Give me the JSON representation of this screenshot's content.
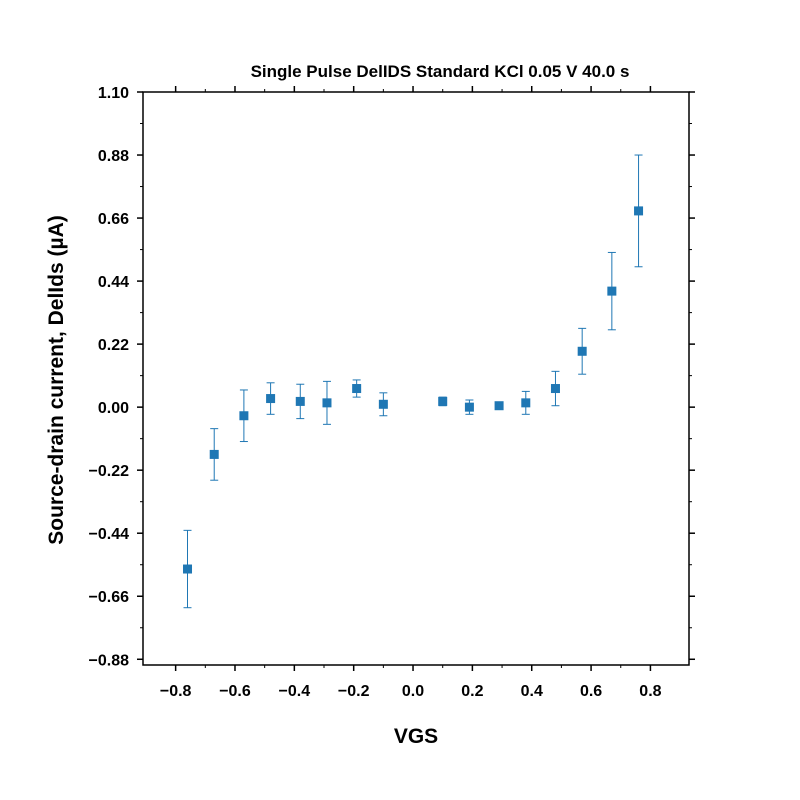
{
  "chart_data": {
    "type": "scatter",
    "title": "Single Pulse DelIDS Standard KCl 0.05 V 40.0 s",
    "xlabel": "VGS",
    "ylabel": "Source-drain current, DelIds (µA)",
    "xlim": [
      -0.91,
      0.93
    ],
    "ylim": [
      -0.9,
      1.1
    ],
    "x_ticks": [
      -0.8,
      -0.6,
      -0.4,
      -0.2,
      0.0,
      0.2,
      0.4,
      0.6,
      0.8
    ],
    "x_tick_labels": [
      "−0.8",
      "−0.6",
      "−0.4",
      "−0.2",
      "0.0",
      "0.2",
      "0.4",
      "0.6",
      "0.8"
    ],
    "y_ticks": [
      1.1,
      0.88,
      0.66,
      0.44,
      0.22,
      0.0,
      -0.22,
      -0.44,
      -0.66,
      -0.88
    ],
    "y_tick_labels": [
      "1.10",
      "0.88",
      "0.66",
      "0.44",
      "0.22",
      "0.00",
      "−0.22",
      "−0.44",
      "−0.66",
      "−0.88"
    ],
    "grid": false,
    "marker_color": "#1f77b4",
    "series": [
      {
        "points": [
          {
            "x": -0.76,
            "y": -0.565,
            "err": 0.135
          },
          {
            "x": -0.67,
            "y": -0.165,
            "err": 0.09
          },
          {
            "x": -0.57,
            "y": -0.03,
            "err": 0.09
          },
          {
            "x": -0.48,
            "y": 0.03,
            "err": 0.055
          },
          {
            "x": -0.38,
            "y": 0.02,
            "err": 0.06
          },
          {
            "x": -0.29,
            "y": 0.015,
            "err": 0.075
          },
          {
            "x": -0.19,
            "y": 0.065,
            "err": 0.03
          },
          {
            "x": -0.1,
            "y": 0.01,
            "err": 0.04
          },
          {
            "x": 0.1,
            "y": 0.02,
            "err": 0.015
          },
          {
            "x": 0.19,
            "y": 0.0,
            "err": 0.025
          },
          {
            "x": 0.29,
            "y": 0.005,
            "err": 0.01
          },
          {
            "x": 0.38,
            "y": 0.015,
            "err": 0.04
          },
          {
            "x": 0.48,
            "y": 0.065,
            "err": 0.06
          },
          {
            "x": 0.57,
            "y": 0.195,
            "err": 0.08
          },
          {
            "x": 0.67,
            "y": 0.405,
            "err": 0.135
          },
          {
            "x": 0.76,
            "y": 0.685,
            "err": 0.195
          }
        ]
      }
    ]
  }
}
